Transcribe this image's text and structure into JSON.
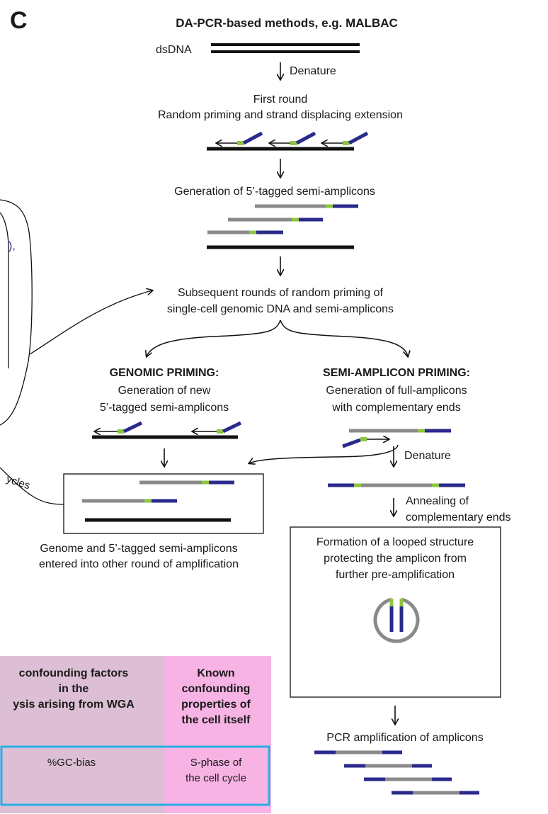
{
  "panel_label": "C",
  "title": "DA-PCR-based methods, e.g. MALBAC",
  "colors": {
    "primer_blue": "#2b2a8c",
    "tag_green": "#8cc63f",
    "amplicon_gray": "#8a8a8a",
    "dna_black": "#111111",
    "table_mauve": "#dcbfd4",
    "table_pink": "#f7b3e4",
    "table_highlight": "#29aee6"
  },
  "labels": {
    "dsdna": "dsDNA",
    "denature_1": "Denature",
    "first_round_1": "First round",
    "first_round_2": "Random priming and strand displacing extension",
    "generation_semi": "Generation of 5’-tagged semi-amplicons",
    "subsequent_1": "Subsequent rounds of random priming of",
    "subsequent_2": "single-cell genomic DNA and semi-amplicons",
    "genomic_priming": "GENOMIC PRIMING:",
    "genomic_1": "Generation of new",
    "genomic_2": "5’-tagged semi-amplicons",
    "semi_priming": "SEMI-AMPLICON PRIMING:",
    "semi_1": "Generation of full-amplicons",
    "semi_2": "with complementary ends",
    "denature_2": "Denature",
    "annealing_1": "Annealing of",
    "annealing_2": "complementary ends",
    "genome_1": "Genome and 5’-tagged semi-amplicons",
    "genome_2": "entered into other round of amplification",
    "loop_1": "Formation of a looped structure",
    "loop_2": "protecting the amplicon from",
    "loop_3": "further pre-amplification",
    "pcr": "PCR amplification of amplicons",
    "cycles": "ycles"
  },
  "table": {
    "header_left_1": "confounding factors",
    "header_left_2": "in the",
    "header_left_3": "ysis arising from WGA",
    "header_right_1": "Known",
    "header_right_2": "confounding",
    "header_right_3": "properties of",
    "header_right_4": "the cell itself",
    "cell_left": "%GC-bias",
    "cell_right_1": "S-phase of",
    "cell_right_2": "the cell cycle"
  },
  "left_fragments": {
    "blue_mark": "),"
  }
}
